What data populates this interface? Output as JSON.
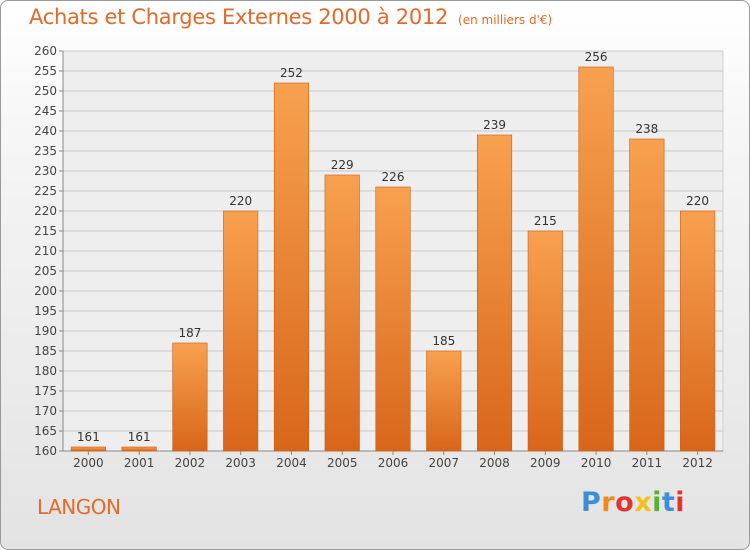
{
  "header": {
    "title": "Achats et Charges Externes 2000 à 2012",
    "unit": "(en milliers d'€)"
  },
  "footer": {
    "place": "LANGON"
  },
  "logo": {
    "letters": [
      "P",
      "r",
      "o",
      "x",
      "i",
      "t",
      "i"
    ],
    "colors": [
      "#3a8fd8",
      "#f08a1e",
      "#e3342f",
      "#f2c21a",
      "#5bb032",
      "#3a8fd8",
      "#e3342f"
    ]
  },
  "colors": {
    "bar_light": "#f7a14f",
    "bar_dark": "#d8661a",
    "accent": "#e36a28"
  },
  "chart_data": {
    "type": "bar",
    "categories": [
      "2000",
      "2001",
      "2002",
      "2003",
      "2004",
      "2005",
      "2006",
      "2007",
      "2008",
      "2009",
      "2010",
      "2011",
      "2012"
    ],
    "values": [
      161,
      161,
      187,
      220,
      252,
      229,
      226,
      185,
      239,
      215,
      256,
      238,
      220
    ],
    "yticks": [
      160,
      165,
      170,
      175,
      180,
      185,
      190,
      195,
      200,
      205,
      210,
      215,
      220,
      225,
      230,
      235,
      240,
      245,
      250,
      255,
      260
    ],
    "ylim": [
      160,
      260
    ],
    "grid": true
  }
}
